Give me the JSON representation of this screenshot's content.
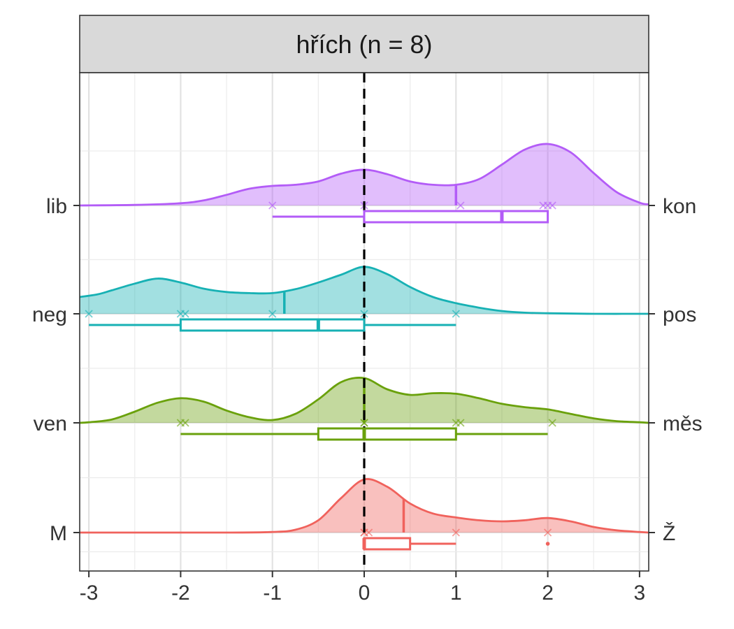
{
  "chart_data": {
    "type": "raincloud",
    "title": "",
    "facet_label": "hřích (n = 8)",
    "xlabel": "",
    "ylabel": "",
    "xlim": [
      -3.1,
      3.1
    ],
    "x_ticks": [
      -3,
      -2,
      -1,
      0,
      1,
      2,
      3
    ],
    "x_tick_labels": [
      "-3",
      "-2",
      "-1",
      "0",
      "1",
      "2",
      "3"
    ],
    "grid": true,
    "reference_line_x": 0,
    "legend": "none",
    "series": [
      {
        "left_label": "M",
        "right_label": "Ž",
        "color": "#f0625c",
        "density": [
          [
            -3.1,
            0
          ],
          [
            -2.5,
            0
          ],
          [
            -1.5,
            0
          ],
          [
            -1.0,
            0.01
          ],
          [
            -0.75,
            0.05
          ],
          [
            -0.5,
            0.22
          ],
          [
            -0.25,
            0.62
          ],
          [
            0,
            0.95
          ],
          [
            0.25,
            0.82
          ],
          [
            0.5,
            0.52
          ],
          [
            0.75,
            0.34
          ],
          [
            1.0,
            0.27
          ],
          [
            1.25,
            0.22
          ],
          [
            1.5,
            0.2
          ],
          [
            1.75,
            0.22
          ],
          [
            2.0,
            0.26
          ],
          [
            2.25,
            0.2
          ],
          [
            2.5,
            0.1
          ],
          [
            2.75,
            0.04
          ],
          [
            3.0,
            0.01
          ],
          [
            3.1,
            0
          ]
        ],
        "mean": 0.43,
        "points": [
          0,
          0,
          0.05,
          1,
          2
        ],
        "box": {
          "whisker_low": 0,
          "q1": 0,
          "median": 0,
          "q3": 0.5,
          "whisker_high": 1
        },
        "outliers": [
          2
        ]
      },
      {
        "left_label": "ven",
        "right_label": "měs",
        "color": "#6aa10c",
        "density": [
          [
            -3.1,
            0
          ],
          [
            -3.0,
            0.01
          ],
          [
            -2.75,
            0.06
          ],
          [
            -2.5,
            0.2
          ],
          [
            -2.25,
            0.36
          ],
          [
            -2.0,
            0.44
          ],
          [
            -1.75,
            0.38
          ],
          [
            -1.5,
            0.22
          ],
          [
            -1.25,
            0.1
          ],
          [
            -1.0,
            0.05
          ],
          [
            -0.75,
            0.16
          ],
          [
            -0.5,
            0.42
          ],
          [
            -0.25,
            0.73
          ],
          [
            0,
            0.8
          ],
          [
            0.25,
            0.6
          ],
          [
            0.5,
            0.5
          ],
          [
            0.75,
            0.53
          ],
          [
            1.0,
            0.52
          ],
          [
            1.25,
            0.44
          ],
          [
            1.5,
            0.34
          ],
          [
            1.75,
            0.28
          ],
          [
            2.0,
            0.24
          ],
          [
            2.25,
            0.16
          ],
          [
            2.5,
            0.08
          ],
          [
            2.75,
            0.03
          ],
          [
            3.0,
            0.01
          ],
          [
            3.1,
            0
          ]
        ],
        "mean": 0.0,
        "points": [
          -2,
          -1.95,
          0,
          0,
          1,
          1.05,
          2.05
        ],
        "box": {
          "whisker_low": -2,
          "q1": -0.5,
          "median": 0,
          "q3": 1,
          "whisker_high": 2
        },
        "outliers": []
      },
      {
        "left_label": "neg",
        "right_label": "pos",
        "color": "#17b1b4",
        "density": [
          [
            -3.1,
            0.3
          ],
          [
            -2.9,
            0.35
          ],
          [
            -2.75,
            0.42
          ],
          [
            -2.5,
            0.54
          ],
          [
            -2.25,
            0.63
          ],
          [
            -2.0,
            0.56
          ],
          [
            -1.75,
            0.45
          ],
          [
            -1.5,
            0.39
          ],
          [
            -1.25,
            0.37
          ],
          [
            -1.0,
            0.37
          ],
          [
            -0.75,
            0.44
          ],
          [
            -0.5,
            0.56
          ],
          [
            -0.25,
            0.7
          ],
          [
            0,
            0.84
          ],
          [
            0.25,
            0.71
          ],
          [
            0.5,
            0.48
          ],
          [
            0.75,
            0.3
          ],
          [
            1.0,
            0.19
          ],
          [
            1.25,
            0.11
          ],
          [
            1.5,
            0.05
          ],
          [
            1.75,
            0.02
          ],
          [
            2.0,
            0.01
          ],
          [
            2.5,
            0
          ],
          [
            3.1,
            0
          ]
        ],
        "mean": -0.87,
        "points": [
          -3,
          -2,
          -1.95,
          -1,
          0,
          1
        ],
        "box": {
          "whisker_low": -3,
          "q1": -2,
          "median": -0.5,
          "q3": 0,
          "whisker_high": 1
        },
        "outliers": []
      },
      {
        "left_label": "lib",
        "right_label": "kon",
        "color": "#b35cf7",
        "density": [
          [
            -3.1,
            0
          ],
          [
            -2.5,
            0.01
          ],
          [
            -2.0,
            0.04
          ],
          [
            -1.75,
            0.09
          ],
          [
            -1.5,
            0.19
          ],
          [
            -1.25,
            0.3
          ],
          [
            -1.0,
            0.35
          ],
          [
            -0.75,
            0.37
          ],
          [
            -0.5,
            0.43
          ],
          [
            -0.25,
            0.57
          ],
          [
            0,
            0.64
          ],
          [
            0.25,
            0.56
          ],
          [
            0.5,
            0.43
          ],
          [
            0.75,
            0.37
          ],
          [
            1.0,
            0.37
          ],
          [
            1.25,
            0.47
          ],
          [
            1.5,
            0.73
          ],
          [
            1.75,
            1.0
          ],
          [
            2.0,
            1.1
          ],
          [
            2.25,
            0.95
          ],
          [
            2.5,
            0.58
          ],
          [
            2.75,
            0.24
          ],
          [
            3.0,
            0.05
          ],
          [
            3.1,
            0.02
          ]
        ],
        "mean": 1.0,
        "points": [
          -1,
          0,
          1.05,
          1.95,
          2,
          2.05
        ],
        "box": {
          "whisker_low": -1,
          "q1": 0,
          "median": 1.5,
          "q3": 2,
          "whisker_high": 2
        },
        "outliers": []
      }
    ]
  }
}
